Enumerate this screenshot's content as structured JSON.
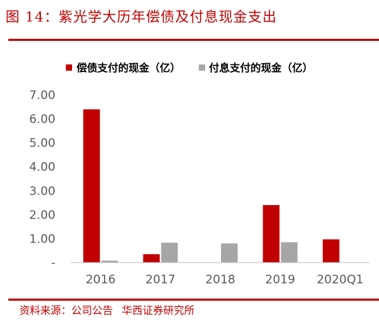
{
  "title": "图 14：紫光学大历年偿债及付息现金支出",
  "source": [
    "资料来源：公司公告",
    "华西证券研究所"
  ],
  "colors": {
    "accent": "#c00000",
    "series1": "#c00000",
    "series2": "#a6a6a6"
  },
  "chart_data": {
    "type": "bar",
    "categories": [
      "2016",
      "2017",
      "2018",
      "2019",
      "2020Q1"
    ],
    "series": [
      {
        "name": "偿债支付的现金（亿）",
        "color": "#c00000",
        "values": [
          6.4,
          0.35,
          0,
          2.4,
          0.97
        ]
      },
      {
        "name": "付息支付的现金（亿）",
        "color": "#a6a6a6",
        "values": [
          0.08,
          0.83,
          0.8,
          0.85,
          0
        ]
      }
    ],
    "yticks": [
      "-",
      "1.00",
      "2.00",
      "3.00",
      "4.00",
      "5.00",
      "6.00",
      "7.00"
    ],
    "ylim": [
      0,
      7
    ],
    "legend_position": "top-center",
    "grid": false
  }
}
